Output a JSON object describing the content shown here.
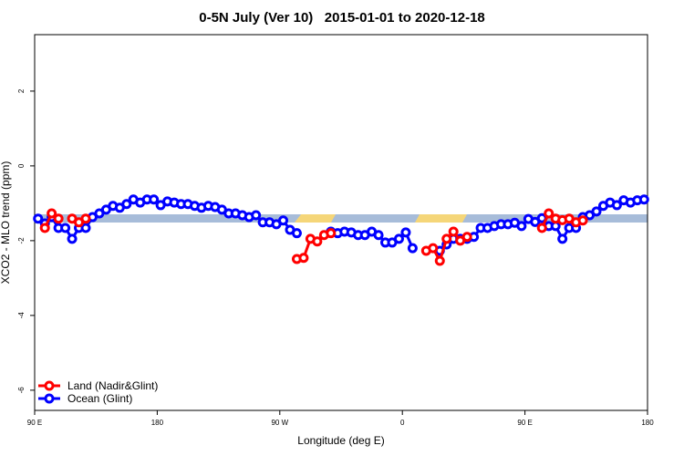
{
  "chart_data": {
    "type": "line",
    "title": "0-5N July (Ver 10)   2015-01-01 to 2020-12-18",
    "x_label": "Longitude (deg E)",
    "y_label": "XCO2 - MLO trend (ppm)",
    "xlim": [
      90,
      540
    ],
    "ylim": [
      -6.54,
      3.51
    ],
    "xticks": [
      {
        "value": 90,
        "label": "90 E"
      },
      180,
      {
        "value": 270,
        "label": "90 W"
      },
      {
        "value": 360,
        "label": "0"
      },
      {
        "value": 450,
        "label": "90 E"
      },
      {
        "value": 540,
        "label": "180"
      }
    ],
    "yticks": [
      -6,
      -4,
      -2,
      0,
      2
    ],
    "legend": "bottom-left",
    "x": [
      92.5,
      97.5,
      102.5,
      107.5,
      112.5,
      117.5,
      122.5,
      127.5,
      132.5,
      137.5,
      142.5,
      147.5,
      152.5,
      157.5,
      162.5,
      167.5,
      172.5,
      177.5,
      182.5,
      187.5,
      192.5,
      197.5,
      202.5,
      207.5,
      212.5,
      217.5,
      222.5,
      227.5,
      232.5,
      237.5,
      242.5,
      247.5,
      252.5,
      257.5,
      262.5,
      267.5,
      272.5,
      277.5,
      282.5,
      287.5,
      292.5,
      297.5,
      302.5,
      307.5,
      312.5,
      317.5,
      322.5,
      327.5,
      332.5,
      337.5,
      342.5,
      347.5,
      352.5,
      357.5,
      362.5,
      367.5,
      372.5,
      377.5,
      382.5,
      387.5,
      392.5,
      397.5,
      402.5,
      407.5,
      412.5,
      417.5,
      422.5,
      427.5,
      432.5,
      437.5,
      442.5,
      447.5,
      452.5,
      457.5,
      462.5,
      467.5,
      472.5,
      477.5,
      482.5,
      487.5,
      492.5,
      497.5,
      502.5,
      507.5,
      512.5,
      517.5,
      522.5,
      527.5,
      532.5,
      537.5
    ],
    "series": [
      {
        "name": "Ocean (Glint)",
        "color": "#0000ff",
        "values": [
          -1.41,
          -1.54,
          -1.37,
          -1.66,
          -1.66,
          -1.95,
          -1.66,
          -1.66,
          -1.37,
          -1.27,
          -1.17,
          -1.07,
          -1.12,
          -1.02,
          -0.9,
          -0.98,
          -0.9,
          -0.9,
          -1.05,
          -0.95,
          -0.98,
          -1.02,
          -1.02,
          -1.07,
          -1.12,
          -1.07,
          -1.1,
          -1.17,
          -1.27,
          -1.27,
          -1.32,
          -1.37,
          -1.32,
          -1.51,
          -1.51,
          -1.56,
          -1.46,
          -1.71,
          -1.8,
          null,
          null,
          null,
          null,
          -1.76,
          -1.8,
          -1.76,
          -1.78,
          -1.85,
          -1.85,
          -1.76,
          -1.85,
          -2.05,
          -2.05,
          -1.95,
          -1.78,
          -2.2,
          null,
          null,
          null,
          -2.27,
          -2.1,
          -1.95,
          -1.95,
          -1.95,
          -1.9,
          -1.66,
          -1.66,
          -1.61,
          -1.56,
          -1.56,
          -1.52,
          -1.61,
          -1.42,
          -1.5,
          -1.4,
          -1.61,
          -1.61,
          -1.95,
          -1.66,
          -1.66,
          -1.37,
          -1.32,
          -1.22,
          -1.07,
          -0.98,
          -1.05,
          -0.92,
          -0.98,
          -0.92,
          -0.9
        ]
      },
      {
        "name": "Land (Nadir&Glint)",
        "color": "#ff0000",
        "values": [
          null,
          -1.66,
          -1.27,
          -1.41,
          null,
          -1.41,
          -1.51,
          -1.41,
          null,
          null,
          null,
          null,
          null,
          null,
          null,
          null,
          null,
          null,
          null,
          null,
          null,
          null,
          null,
          null,
          null,
          null,
          null,
          null,
          null,
          null,
          null,
          null,
          null,
          null,
          null,
          null,
          null,
          null,
          -2.49,
          -2.46,
          -1.95,
          -2.02,
          -1.85,
          -1.8,
          null,
          null,
          null,
          null,
          null,
          null,
          null,
          null,
          null,
          null,
          null,
          null,
          null,
          -2.27,
          -2.2,
          -2.54,
          -1.95,
          -1.76,
          -2.0,
          -1.9,
          null,
          null,
          null,
          null,
          null,
          null,
          null,
          null,
          null,
          null,
          -1.66,
          -1.27,
          -1.41,
          -1.45,
          -1.41,
          -1.51,
          -1.46,
          null,
          null,
          null,
          null,
          null,
          null,
          null,
          null,
          null
        ]
      }
    ]
  }
}
